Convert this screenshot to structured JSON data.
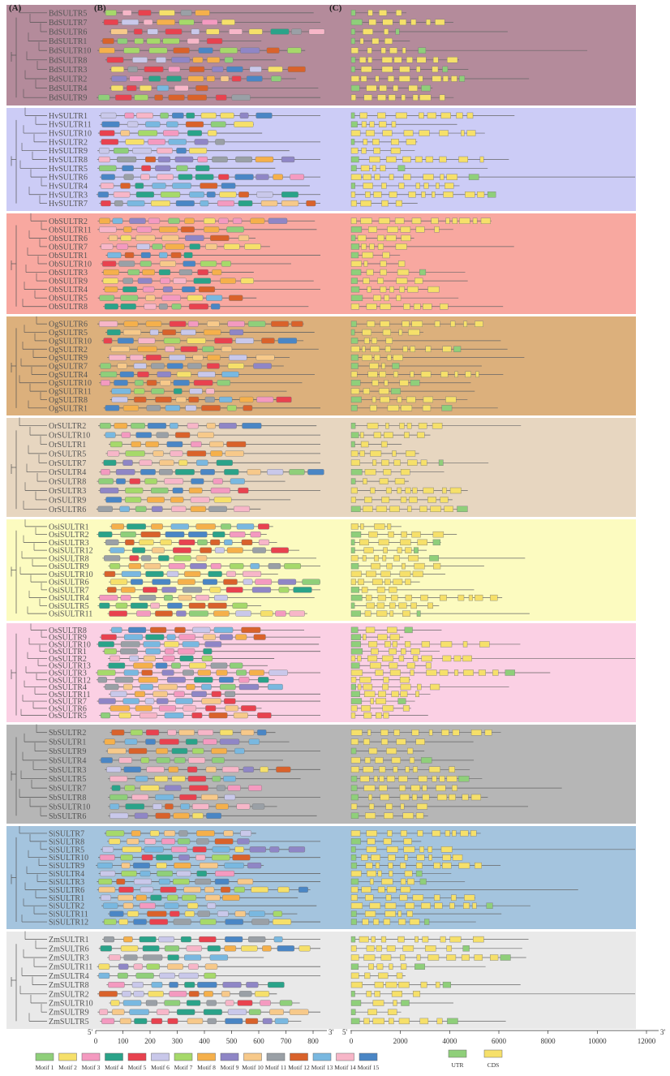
{
  "panel_labels": {
    "a": "(A)",
    "b": "(B)",
    "c": "(C)"
  },
  "axis_b": {
    "ticks": [
      "0",
      "100",
      "200",
      "300",
      "400",
      "500",
      "600",
      "700",
      "800"
    ],
    "left_end": "5'",
    "right_end": "3'"
  },
  "axis_c": {
    "ticks": [
      "0",
      "2000",
      "4000",
      "6000",
      "8000",
      "10000",
      "12000"
    ],
    "left_end": "5'",
    "right_end": "3'"
  },
  "motif_legend": [
    {
      "label": "Motif 1",
      "color": "#8fcf7a"
    },
    {
      "label": "Motif 2",
      "color": "#f6e06a"
    },
    {
      "label": "Motif 3",
      "color": "#f49ac0"
    },
    {
      "label": "Motif 4",
      "color": "#2aa389"
    },
    {
      "label": "Motif 5",
      "color": "#e8424f"
    },
    {
      "label": "Motif 6",
      "color": "#c9c8ea"
    },
    {
      "label": "Motif 7",
      "color": "#a6d96a"
    },
    {
      "label": "Motif 8",
      "color": "#f5b04b"
    },
    {
      "label": "Motif 9",
      "color": "#8f86c6"
    },
    {
      "label": "Motif 10",
      "color": "#f7c98a"
    },
    {
      "label": "Motif 11",
      "color": "#9aa0a6"
    },
    {
      "label": "Motif 12",
      "color": "#d9622b"
    },
    {
      "label": "Motif 13",
      "color": "#79b8e0"
    },
    {
      "label": "Motif 14",
      "color": "#f7b6c8"
    },
    {
      "label": "Motif 15",
      "color": "#4a86c5"
    }
  ],
  "structure_legend": [
    {
      "label": "UTR",
      "color": "#8fcf7a"
    },
    {
      "label": "CDS",
      "color": "#f6e06a"
    }
  ],
  "groups": [
    {
      "bg": "#b48b9b",
      "genes": [
        "BdSULTR5",
        "BdSULTR7",
        "BdSULTR6",
        "BdSULTR1",
        "BdSULTR10",
        "BdSULTR8",
        "BdSULTR3",
        "BdSULTR2",
        "BdSULTR4",
        "BdSULTR9"
      ]
    },
    {
      "bg": "#ccccf6",
      "genes": [
        "HvSULTR1",
        "HvSULTR11",
        "HvSULTR10",
        "HvSULTR2",
        "HvSULTR9",
        "HvSULTR8",
        "HvSULTR5",
        "HvSULTR6",
        "HvSULTR4",
        "HvSULTR3",
        "HvSULTR7"
      ]
    },
    {
      "bg": "#f8a8a0",
      "genes": [
        "ObSULTR2",
        "ObSULTR11",
        "ObSULTR6",
        "ObSULTR7",
        "ObSULTR1",
        "ObSULTR10",
        "ObSULTR3",
        "ObSULTR9",
        "ObSULTR4",
        "ObSULTR5",
        "ObSULTR8"
      ]
    },
    {
      "bg": "#dcb07c",
      "genes": [
        "OgSULTR6",
        "OgSULTR5",
        "OgSULTR10",
        "OgSULTR2",
        "OgSULTR9",
        "OgSULTR7",
        "OgSULTR4",
        "OgSULTR10",
        "OgSULTR11",
        "OgSULTR8",
        "OgSULTR1"
      ]
    },
    {
      "bg": "#e7d6c0",
      "genes": [
        "OrSULTR2",
        "OrSULTR10",
        "OrSULTR1",
        "OrSULTR5",
        "OrSULTR7",
        "OrSULTR4",
        "OrSULTR8",
        "OrSULTR3",
        "OrSULTR9",
        "OrSULTR6"
      ]
    },
    {
      "bg": "#fcfbc0",
      "genes": [
        "OsiSULTR1",
        "OsiSULTR2",
        "OsiSULTR3",
        "OsiSULTR12",
        "OsiSULTR8",
        "OsiSULTR9",
        "OsiSULTR10",
        "OsiSULTR6",
        "OsiSULTR7",
        "OsiSULTR4",
        "OsiSULTR5",
        "OsiSULTR11"
      ]
    },
    {
      "bg": "#fbd0e4",
      "genes": [
        "OsSULTR8",
        "OsSULTR9",
        "OsSULTR10",
        "OsSULTR1",
        "OsSULTR2",
        "OsSULTR13",
        "OsSULTR3",
        "OsSULTR12",
        "OsSULTR4",
        "OsSULTR11",
        "OsSULTR7",
        "OsSULTR6",
        "OsSULTR5"
      ]
    },
    {
      "bg": "#b6b6b6",
      "genes": [
        "SbSULTR2",
        "SbSULTR1",
        "SbSULTR9",
        "SbSULTR4",
        "SbSULTR3",
        "SbSULTR5",
        "SbSULTR7",
        "SbSULTR8",
        "SbSULTR10",
        "SbSULTR6"
      ]
    },
    {
      "bg": "#a4c4de",
      "genes": [
        "SiSULTR7",
        "SiSULTR8",
        "SiSULTR5",
        "SiSULTR10",
        "SiSULTR9",
        "SiSULTR4",
        "SiSULTR3",
        "SiSULTR6",
        "SiSULTR1",
        "SiSULTR2",
        "SiSULTR11",
        "SiSULTR12"
      ]
    },
    {
      "bg": "#e9e9e9",
      "genes": [
        "ZmSULTR1",
        "ZmSULTR6",
        "ZmSULTR3",
        "ZmSULTR11",
        "ZmSULTR4",
        "ZmSULTR8",
        "ZmSULTR2",
        "ZmSULTR10",
        "ZmSULTR9",
        "ZmSULTR5"
      ]
    }
  ]
}
